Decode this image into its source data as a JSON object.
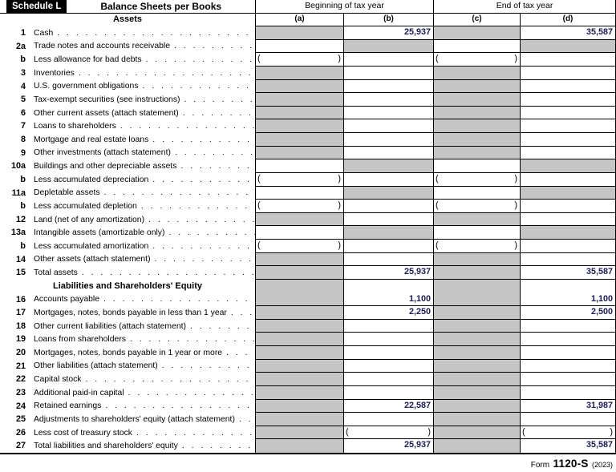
{
  "header": {
    "schedule_label": "Schedule L",
    "title": "Balance Sheets per Books",
    "beginning_label": "Beginning of tax year",
    "end_label": "End of tax year",
    "col_a": "(a)",
    "col_b": "(b)",
    "col_c": "(c)",
    "col_d": "(d)",
    "assets_section": "Assets"
  },
  "colors": {
    "shaded": "#c5c5c5",
    "value_text": "#1b1b55"
  },
  "glyphs": {
    "paren_open": "(",
    "paren_close": ")"
  },
  "rows": [
    {
      "num": "1",
      "label": "Cash",
      "cells": [
        "g",
        "25,937",
        "g",
        "35,587"
      ]
    },
    {
      "num": "2a",
      "label": "Trade notes and accounts receivable",
      "cells": [
        "w",
        "g",
        "w",
        "g"
      ]
    },
    {
      "num": "b",
      "label": "Less allowance for bad debts",
      "cells": [
        "p",
        "w",
        "p",
        "w"
      ]
    },
    {
      "num": "3",
      "label": "Inventories",
      "cells": [
        "g",
        "w",
        "g",
        "w"
      ]
    },
    {
      "num": "4",
      "label": "U.S. government obligations",
      "cells": [
        "g",
        "w",
        "g",
        "w"
      ]
    },
    {
      "num": "5",
      "label": "Tax-exempt securities (see instructions)",
      "cells": [
        "g",
        "w",
        "g",
        "w"
      ]
    },
    {
      "num": "6",
      "label": "Other current assets (attach statement)",
      "cells": [
        "g",
        "w",
        "g",
        "w"
      ]
    },
    {
      "num": "7",
      "label": "Loans to shareholders",
      "cells": [
        "g",
        "w",
        "g",
        "w"
      ]
    },
    {
      "num": "8",
      "label": "Mortgage and real estate loans",
      "cells": [
        "g",
        "w",
        "g",
        "w"
      ]
    },
    {
      "num": "9",
      "label": "Other investments (attach statement)",
      "cells": [
        "g",
        "w",
        "g",
        "w"
      ]
    },
    {
      "num": "10a",
      "label": "Buildings and other depreciable assets",
      "cells": [
        "w",
        "g",
        "w",
        "g"
      ]
    },
    {
      "num": "b",
      "label": "Less accumulated depreciation",
      "cells": [
        "p",
        "w",
        "p",
        "w"
      ]
    },
    {
      "num": "11a",
      "label": "Depletable assets",
      "cells": [
        "w",
        "g",
        "w",
        "g"
      ]
    },
    {
      "num": "b",
      "label": "Less accumulated depletion",
      "cells": [
        "p",
        "w",
        "p",
        "w"
      ]
    },
    {
      "num": "12",
      "label": "Land (net of any amortization)",
      "cells": [
        "g",
        "w",
        "g",
        "w"
      ]
    },
    {
      "num": "13a",
      "label": "Intangible assets (amortizable only)",
      "cells": [
        "w",
        "g",
        "w",
        "g"
      ]
    },
    {
      "num": "b",
      "label": "Less accumulated amortization",
      "cells": [
        "p",
        "w",
        "p",
        "w"
      ]
    },
    {
      "num": "14",
      "label": "Other assets (attach statement)",
      "cells": [
        "g",
        "w",
        "g",
        "w"
      ]
    },
    {
      "num": "15",
      "label": "Total assets",
      "heavy": true,
      "cells": [
        "g",
        "25,937",
        "g",
        "35,587"
      ]
    },
    {
      "section": true,
      "label": "Liabilities and Shareholders' Equity",
      "cells": [
        "g",
        "w",
        "g",
        "w"
      ]
    },
    {
      "num": "16",
      "label": "Accounts payable",
      "cells": [
        "g",
        "1,100",
        "g",
        "1,100"
      ]
    },
    {
      "num": "17",
      "label": "Mortgages, notes, bonds payable in less than 1 year",
      "cells": [
        "g",
        "2,250",
        "g",
        "2,500"
      ]
    },
    {
      "num": "18",
      "label": "Other current liabilities (attach statement)",
      "cells": [
        "g",
        "w",
        "g",
        "w"
      ]
    },
    {
      "num": "19",
      "label": "Loans from shareholders",
      "cells": [
        "g",
        "w",
        "g",
        "w"
      ]
    },
    {
      "num": "20",
      "label": "Mortgages, notes, bonds payable in 1 year or more",
      "cells": [
        "g",
        "w",
        "g",
        "w"
      ]
    },
    {
      "num": "21",
      "label": "Other liabilities (attach statement)",
      "cells": [
        "g",
        "w",
        "g",
        "w"
      ]
    },
    {
      "num": "22",
      "label": "Capital stock",
      "cells": [
        "g",
        "w",
        "g",
        "w"
      ]
    },
    {
      "num": "23",
      "label": "Additional paid-in capital",
      "cells": [
        "g",
        "w",
        "g",
        "w"
      ]
    },
    {
      "num": "24",
      "label": "Retained earnings",
      "cells": [
        "g",
        "22,587",
        "g",
        "31,987"
      ]
    },
    {
      "num": "25",
      "label": "Adjustments to shareholders' equity (attach statement)",
      "cells": [
        "g",
        "w",
        "g",
        "w"
      ]
    },
    {
      "num": "26",
      "label": "Less cost of treasury stock",
      "cells": [
        "g",
        "p",
        "g",
        "p"
      ]
    },
    {
      "num": "27",
      "label": "Total liabilities and shareholders' equity",
      "last": true,
      "cells": [
        "g",
        "25,937",
        "g",
        "35,587"
      ]
    }
  ],
  "footer": {
    "form_word": "Form",
    "form_number": "1120-S",
    "year": "(2023)"
  }
}
